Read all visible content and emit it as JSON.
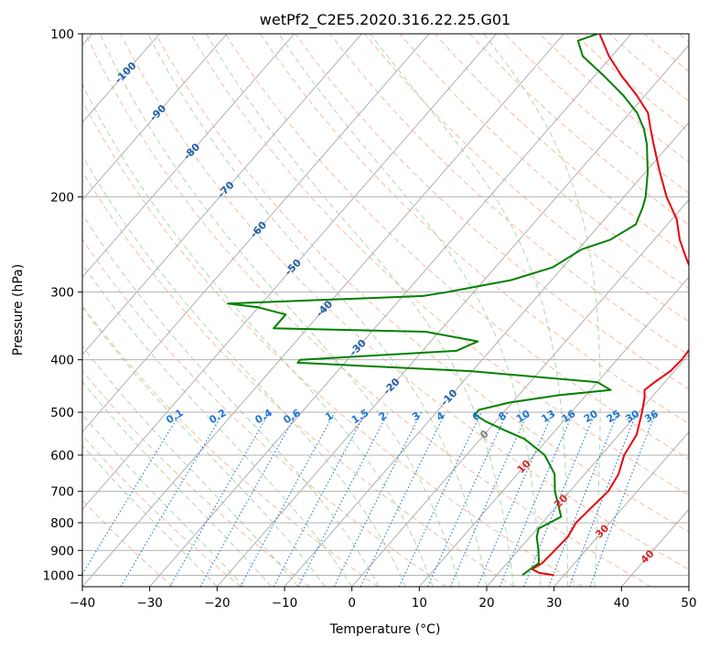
{
  "chart_data": {
    "type": "line",
    "diagram": "skew-t log-p",
    "title": "wetPf2_C2E5.2020.316.22.25.G01",
    "xlabel": "Temperature (°C)",
    "ylabel": "Pressure (hPa)",
    "xlim": [
      -40,
      50
    ],
    "ylim": [
      1050,
      100
    ],
    "y_scale": "log",
    "grid": true,
    "x_ticks": [
      -40,
      -30,
      -20,
      -10,
      0,
      10,
      20,
      30,
      40,
      50
    ],
    "x_tick_labels": [
      "−40",
      "−30",
      "−20",
      "−10",
      "0",
      "10",
      "20",
      "30",
      "40",
      "50"
    ],
    "y_ticks": [
      100,
      200,
      300,
      400,
      500,
      600,
      700,
      800,
      900,
      1000
    ],
    "y_tick_labels": [
      "100",
      "200",
      "300",
      "400",
      "500",
      "600",
      "700",
      "800",
      "900",
      "1000"
    ],
    "isotherm_labels": [
      "-100",
      "-90",
      "-80",
      "-70",
      "-60",
      "-50",
      "-40",
      "-30",
      "-20",
      "-10",
      "0",
      "10",
      "20",
      "30",
      "40"
    ],
    "isotherm_label_values": [
      -100,
      -90,
      -80,
      -70,
      -60,
      -50,
      -40,
      -30,
      -20,
      -10,
      0,
      10,
      20,
      30,
      40
    ],
    "mixing_ratio_labels": [
      "0.1",
      "0.2",
      "0.4",
      "0.6",
      "1",
      "1.5",
      "2",
      "3",
      "4",
      "6",
      "8",
      "10",
      "13",
      "16",
      "20",
      "25",
      "30",
      "36"
    ],
    "mixing_ratio_values": [
      0.1,
      0.2,
      0.4,
      0.6,
      1,
      1.5,
      2,
      3,
      4,
      6,
      8,
      10,
      13,
      16,
      20,
      25,
      30,
      36
    ],
    "colors": {
      "temperature": "#e8000b",
      "dewpoint": "#008000",
      "isotherm": "#a9a9a9",
      "dry_adiabat": "#f4a582",
      "moist_adiabat": "#8fcf8f",
      "mixing_ratio": "#1f77d4",
      "label_negative": "#1f5fa8",
      "label_zero": "#808080",
      "label_positive": "#d62728"
    },
    "series": [
      {
        "role": "temperature",
        "points": [
          [
            1000,
            28.5
          ],
          [
            990,
            26
          ],
          [
            975,
            24.5
          ],
          [
            950,
            25.2
          ],
          [
            900,
            25.4
          ],
          [
            850,
            25.6
          ],
          [
            800,
            25.0
          ],
          [
            750,
            25.3
          ],
          [
            700,
            25.7
          ],
          [
            650,
            25.0
          ],
          [
            600,
            23.4
          ],
          [
            550,
            22.6
          ],
          [
            500,
            20.5
          ],
          [
            470,
            19.0
          ],
          [
            455,
            18.0
          ],
          [
            440,
            18.5
          ],
          [
            420,
            19.4
          ],
          [
            400,
            19.6
          ],
          [
            380,
            19.4
          ],
          [
            360,
            18.6
          ],
          [
            340,
            16.6
          ],
          [
            320,
            15.0
          ],
          [
            300,
            12.8
          ],
          [
            280,
            10.5
          ],
          [
            260,
            7.2
          ],
          [
            240,
            3.8
          ],
          [
            220,
            0.7
          ],
          [
            200,
            -3.7
          ],
          [
            180,
            -7.9
          ],
          [
            160,
            -12.4
          ],
          [
            150,
            -14.8
          ],
          [
            140,
            -17.3
          ],
          [
            130,
            -21.2
          ],
          [
            120,
            -25.8
          ],
          [
            110,
            -30.4
          ],
          [
            100,
            -34.7
          ]
        ]
      },
      {
        "role": "dewpoint",
        "points": [
          [
            1000,
            23.8
          ],
          [
            975,
            24.2
          ],
          [
            950,
            24.7
          ],
          [
            900,
            23.0
          ],
          [
            850,
            21.0
          ],
          [
            820,
            20.2
          ],
          [
            800,
            21.1
          ],
          [
            780,
            22.0
          ],
          [
            750,
            20.5
          ],
          [
            700,
            17.8
          ],
          [
            650,
            15.5
          ],
          [
            600,
            11.6
          ],
          [
            560,
            6.5
          ],
          [
            540,
            2.5
          ],
          [
            520,
            -1.5
          ],
          [
            505,
            -4.0
          ],
          [
            495,
            -4.0
          ],
          [
            480,
            -0.5
          ],
          [
            465,
            6.0
          ],
          [
            455,
            13.0
          ],
          [
            440,
            10.0
          ],
          [
            420,
            -10.0
          ],
          [
            405,
            -37.0
          ],
          [
            400,
            -37.0
          ],
          [
            385,
            -15.0
          ],
          [
            370,
            -13.0
          ],
          [
            355,
            -22.0
          ],
          [
            350,
            -45.0
          ],
          [
            330,
            -45.0
          ],
          [
            320,
            -50.0
          ],
          [
            315,
            -55.0
          ],
          [
            305,
            -27.0
          ],
          [
            300,
            -24.0
          ],
          [
            285,
            -16.0
          ],
          [
            270,
            -11.5
          ],
          [
            250,
            -9.5
          ],
          [
            240,
            -6.5
          ],
          [
            225,
            -4.7
          ],
          [
            210,
            -5.8
          ],
          [
            200,
            -6.8
          ],
          [
            180,
            -9.7
          ],
          [
            160,
            -13.4
          ],
          [
            150,
            -15.8
          ],
          [
            140,
            -18.9
          ],
          [
            130,
            -23.2
          ],
          [
            120,
            -28.4
          ],
          [
            110,
            -34.3
          ],
          [
            103,
            -37.0
          ],
          [
            100,
            -35.0
          ]
        ]
      }
    ]
  }
}
